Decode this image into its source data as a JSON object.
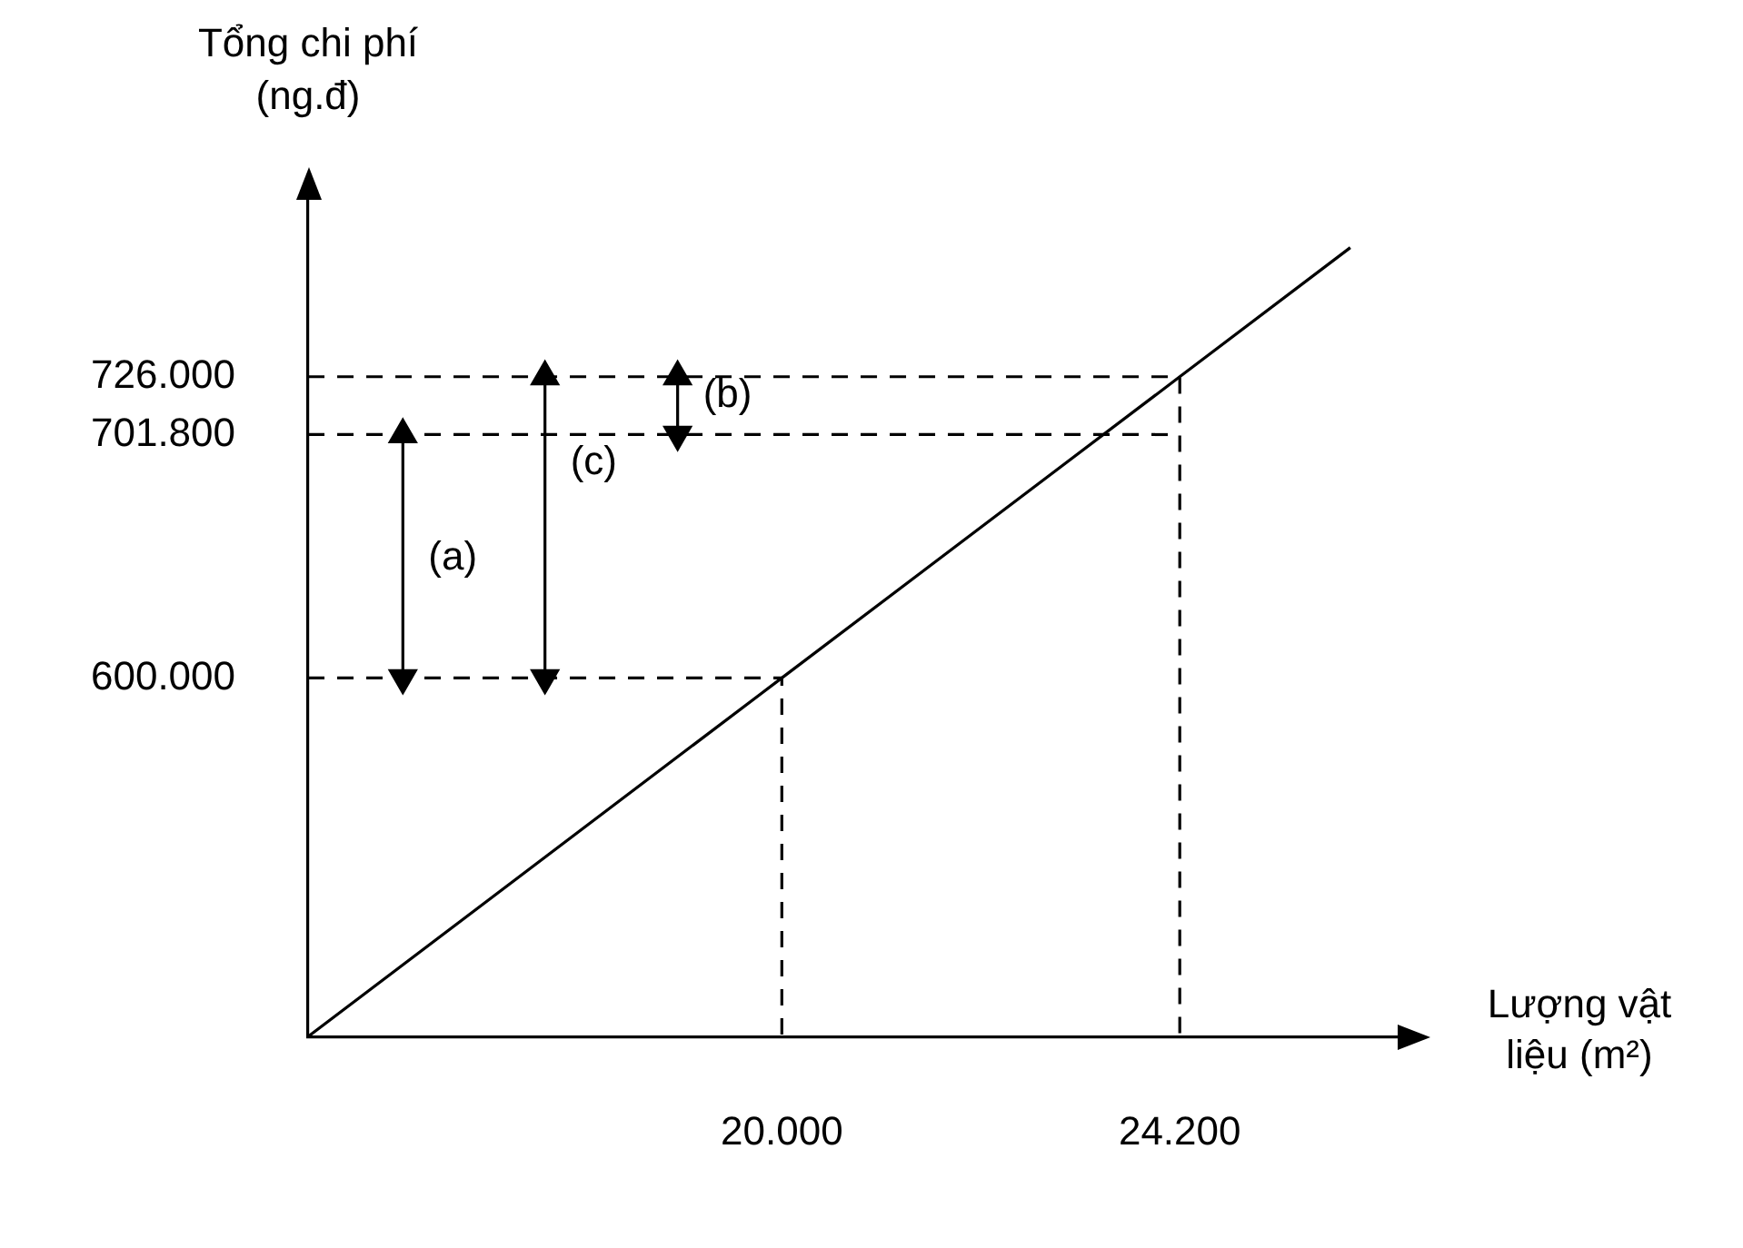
{
  "chart_data": {
    "type": "line",
    "xlabel": "Lượng vật liệu (m²)",
    "ylabel": "Tổng chi phí (ng.đ)",
    "xlim": [
      15000,
      26500
    ],
    "ylim": [
      450000,
      800000
    ],
    "xticks": [
      {
        "value": 20000,
        "label": "20.000"
      },
      {
        "value": 24200,
        "label": "24.200"
      }
    ],
    "yticks": [
      {
        "value": 600000,
        "label": "600.000"
      },
      {
        "value": 701800,
        "label": "701.800"
      },
      {
        "value": 726000,
        "label": "726.000"
      }
    ],
    "series": [
      {
        "color": "#000000",
        "x": [
          15000,
          20000,
          24200,
          26000
        ],
        "values": [
          450000,
          600000,
          726000,
          780000
        ],
        "line_style": "solid",
        "marker": "none"
      },
      {
        "color": "#000000",
        "x": [
          15000,
          20000,
          20000
        ],
        "values": [
          600000,
          600000,
          450000
        ],
        "line_style": "dashed",
        "marker": "none"
      },
      {
        "color": "#000000",
        "x": [
          15000,
          24200
        ],
        "values": [
          701800,
          701800
        ],
        "line_style": "dashed",
        "marker": "none"
      },
      {
        "color": "#000000",
        "x": [
          15000,
          24200,
          24200
        ],
        "values": [
          726000,
          726000,
          450000
        ],
        "line_style": "dashed",
        "marker": "none"
      },
      {
        "color": "#000000",
        "x": [
          16000,
          16000
        ],
        "values": [
          600000,
          701800
        ],
        "line_style": "solid",
        "marker": "triangle"
      },
      {
        "color": "#000000",
        "x": [
          17500,
          17500
        ],
        "values": [
          600000,
          726000
        ],
        "line_style": "solid",
        "marker": "triangle"
      },
      {
        "color": "#000000",
        "x": [
          18900,
          18900
        ],
        "values": [
          701800,
          726000
        ],
        "line_style": "solid",
        "marker": "triangle"
      }
    ],
    "annotations": [
      {
        "text": "(a)",
        "x": 16000,
        "y": 650000
      },
      {
        "text": "(c)",
        "x": 17500,
        "y": 690000
      },
      {
        "text": "(b)",
        "x": 18900,
        "y": 718000
      }
    ]
  }
}
